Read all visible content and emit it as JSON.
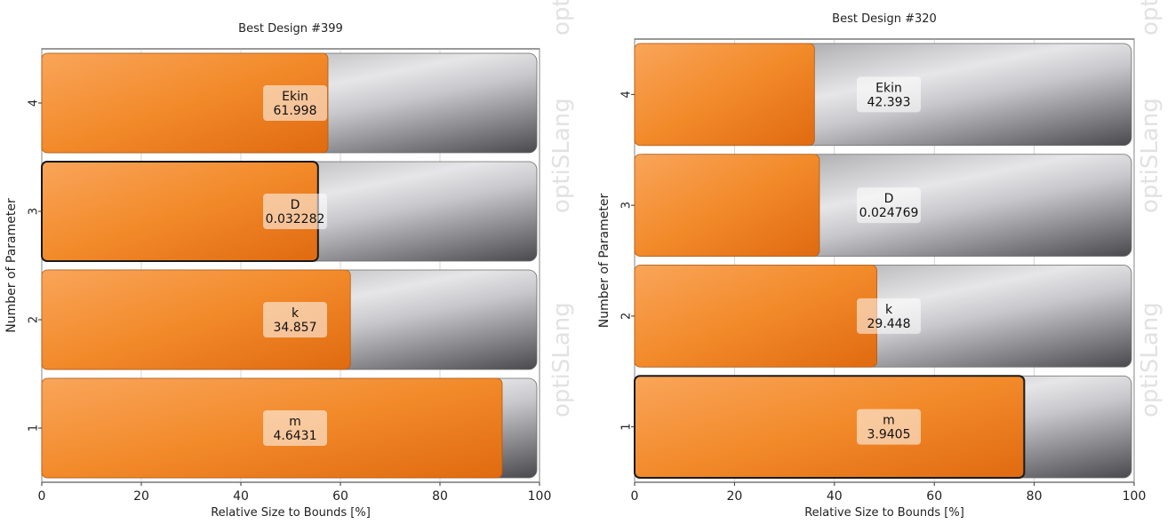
{
  "chart_data": [
    {
      "type": "bar",
      "orientation": "horizontal",
      "title": "Best Design #399",
      "xlabel": "Relative Size to Bounds [%]",
      "ylabel": "Number of Parameter",
      "xlim": [
        0,
        100
      ],
      "xticks": [
        "0",
        "20",
        "40",
        "60",
        "80",
        "100"
      ],
      "categories": [
        "1",
        "2",
        "3",
        "4"
      ],
      "values": [
        92.5,
        62,
        55.5,
        57.5
      ],
      "bar_names": [
        "m",
        "k",
        "D",
        "Ekin"
      ],
      "bar_values": [
        "4.6431",
        "34.857",
        "0.032282",
        "61.998"
      ],
      "highlighted": [
        false,
        false,
        true,
        false
      ],
      "watermark": "optiSLang",
      "colors": {
        "fill": "#f28a2a",
        "track": "#a8a8aa"
      }
    },
    {
      "type": "bar",
      "orientation": "horizontal",
      "title": "Best Design #320",
      "xlabel": "Relative Size to Bounds [%]",
      "ylabel": "Number of Parameter",
      "xlim": [
        0,
        100
      ],
      "xticks": [
        "0",
        "20",
        "40",
        "60",
        "80",
        "100"
      ],
      "categories": [
        "1",
        "2",
        "3",
        "4"
      ],
      "values": [
        78,
        48.5,
        37,
        36
      ],
      "bar_names": [
        "m",
        "k",
        "D",
        "Ekin"
      ],
      "bar_values": [
        "3.9405",
        "29.448",
        "0.024769",
        "42.393"
      ],
      "highlighted": [
        true,
        false,
        false,
        false
      ],
      "watermark": "optiSLang",
      "colors": {
        "fill": "#f28a2a",
        "track": "#a8a8aa"
      }
    }
  ]
}
